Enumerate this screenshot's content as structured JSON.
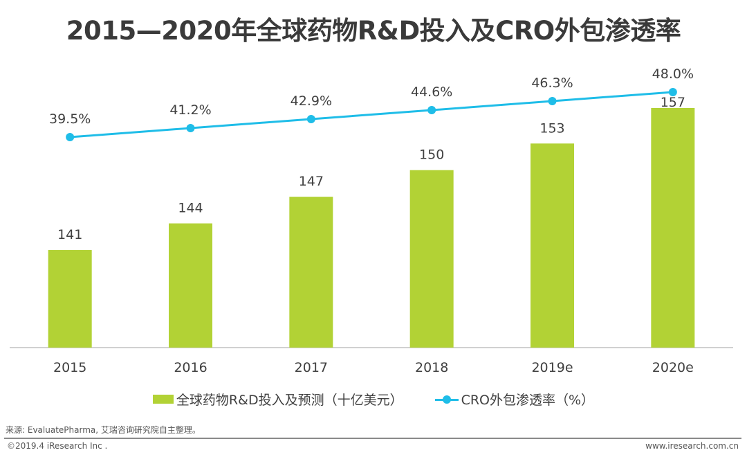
{
  "header": {
    "title": "2015—2020年全球药物R&D投入及CRO外包渗透率"
  },
  "chart_data": {
    "type": "bar",
    "title": "2015—2020年全球药物R&D投入及CRO外包渗透率",
    "categories": [
      "2015",
      "2016",
      "2017",
      "2018",
      "2019e",
      "2020e"
    ],
    "series": [
      {
        "name": "全球药物R&D投入及预测（十亿美元）",
        "type": "bar",
        "axis": "left",
        "color": "#b2d235",
        "values": [
          141,
          144,
          147,
          150,
          153,
          157
        ],
        "labels": [
          "141",
          "144",
          "147",
          "150",
          "153",
          "157"
        ]
      },
      {
        "name": "CRO外包渗透率（%）",
        "type": "line",
        "axis": "right",
        "color": "#1fbde8",
        "values": [
          39.5,
          41.2,
          42.9,
          44.6,
          46.3,
          48.0
        ],
        "labels": [
          "39.5%",
          "41.2%",
          "42.9%",
          "44.6%",
          "46.3%",
          "48.0%"
        ]
      }
    ],
    "ylim_bar": [
      130,
      158
    ],
    "ylim_line": [
      25,
      50
    ],
    "xlabel": "",
    "ylabel": "",
    "grid": false,
    "legend_position": "bottom"
  },
  "legend": {
    "bar_label": "全球药物R&D投入及预测（十亿美元）",
    "line_label": "CRO外包渗透率（%）"
  },
  "footer": {
    "source": "来源: EvaluatePharma, 艾瑞咨询研究院自主整理。",
    "copyright": "©2019.4 iResearch Inc .",
    "website": "www.iresearch.com.cn"
  }
}
